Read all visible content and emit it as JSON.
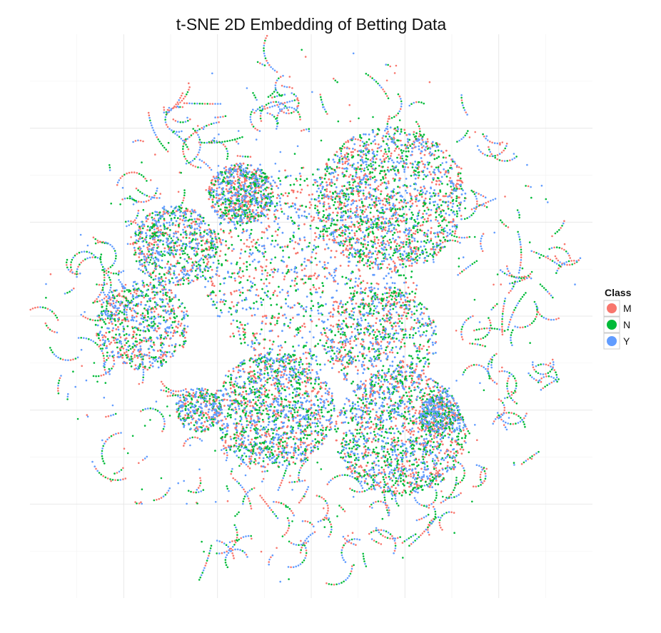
{
  "chart_data": {
    "type": "scatter",
    "title": "t-SNE 2D Embedding of Betting Data",
    "xlabel": "",
    "ylabel": "",
    "grid": true,
    "axis_ticks_labeled": false,
    "legend": {
      "title": "Class",
      "placement": "right",
      "entries": [
        {
          "label": "M",
          "color": "#F8766D"
        },
        {
          "label": "N",
          "color": "#00BA38"
        },
        {
          "label": "Y",
          "color": "#619CFF"
        }
      ]
    },
    "series": [
      {
        "name": "M",
        "color": "#F8766D"
      },
      {
        "name": "N",
        "color": "#00BA38"
      },
      {
        "name": "Y",
        "color": "#619CFF"
      }
    ],
    "xlim": [
      -60,
      60
    ],
    "ylim": [
      -60,
      60
    ],
    "x_major_gridlines": [
      -40,
      -20,
      0,
      20,
      40
    ],
    "y_major_gridlines": [
      -40,
      -20,
      0,
      20,
      40
    ],
    "clusters": [
      {
        "center": [
          0,
          10
        ],
        "radius": 23,
        "density": "very high",
        "mix": "M, N, Y"
      },
      {
        "center": [
          17,
          25
        ],
        "radius": 16,
        "density": "very high",
        "mix": "M, N, Y"
      },
      {
        "center": [
          19,
          -25
        ],
        "radius": 14,
        "density": "very high",
        "mix": "M, N, Y"
      },
      {
        "center": [
          -8,
          -20
        ],
        "radius": 13,
        "density": "very high",
        "mix": "M, N, Y"
      },
      {
        "center": [
          15,
          -5
        ],
        "radius": 12,
        "density": "high",
        "mix": "M, N, Y"
      },
      {
        "center": [
          -36,
          -2
        ],
        "radius": 10,
        "density": "high",
        "mix": "M, N, Y"
      },
      {
        "center": [
          -15,
          26
        ],
        "radius": 7,
        "density": "high",
        "mix": "M, N, Y"
      },
      {
        "center": [
          -29,
          15
        ],
        "radius": 9,
        "density": "high",
        "mix": "M, N, Y"
      },
      {
        "center": [
          -24,
          -20
        ],
        "radius": 5,
        "density": "medium",
        "mix": "M, N, Y"
      },
      {
        "center": [
          27,
          -21
        ],
        "radius": 4,
        "density": "medium",
        "mix": "M, N, Y"
      }
    ],
    "periphery": {
      "description": "many short curved strands of mixed-class points surrounding the clusters out to radius ~55"
    }
  }
}
